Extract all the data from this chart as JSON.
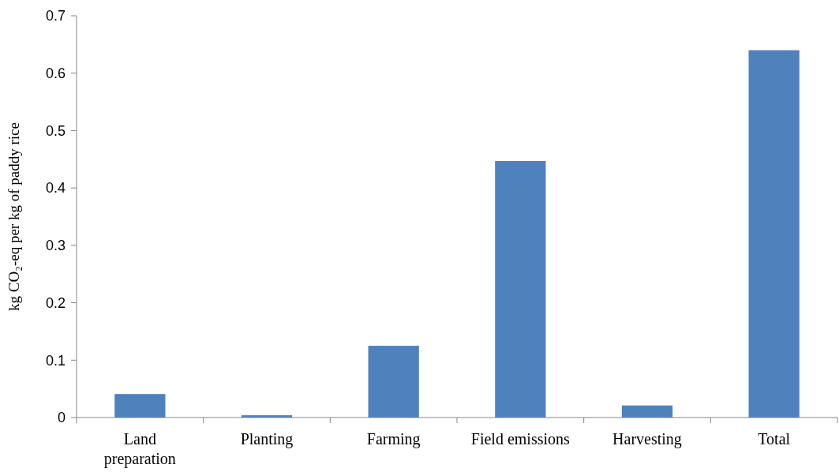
{
  "chart_data": {
    "type": "bar",
    "ylabel": "kg CO₂-eq per kg of paddy rice",
    "categories": [
      "Land preparation",
      "Planting",
      "Farming",
      "Field emissions",
      "Harvesting",
      "Total"
    ],
    "values": [
      0.041,
      0.004,
      0.125,
      0.447,
      0.021,
      0.64
    ],
    "color": "#4f81bd",
    "ylim": [
      0,
      0.7
    ],
    "yticks": [
      0,
      0.1,
      0.2,
      0.3,
      0.4,
      0.5,
      0.6,
      0.7
    ],
    "grid": false
  }
}
